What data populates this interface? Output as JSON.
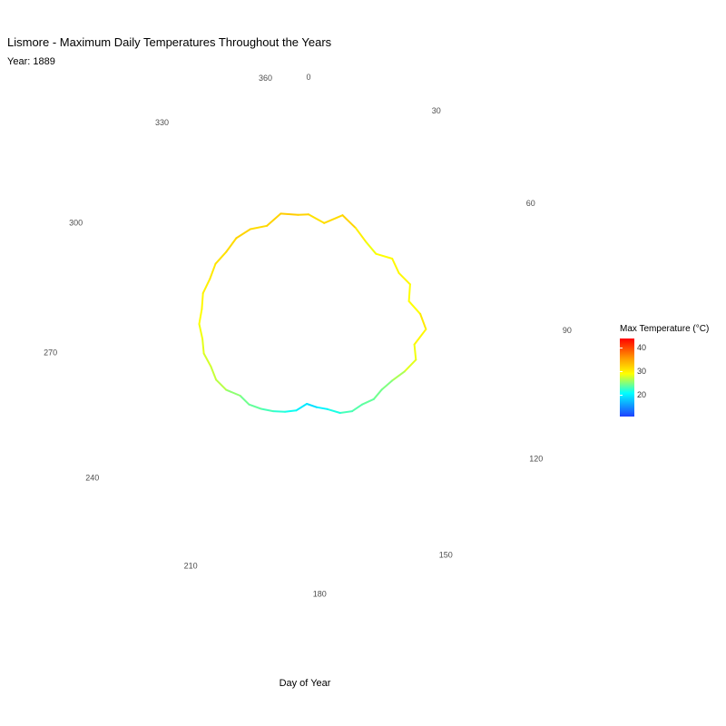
{
  "chart": {
    "title": "Lismore - Maximum Daily Temperatures Throughout the Years",
    "subtitle": "Year: 1889",
    "xlabel": "Day of Year"
  },
  "legend": {
    "title": "Max Temperature (°C)",
    "ticks": [
      "40",
      "30",
      "20"
    ],
    "colors": {
      "low": "#1e40ff",
      "mid_low": "#00ffff",
      "mid": "#ffff00",
      "mid_high": "#ff9900",
      "high": "#ff0000"
    }
  },
  "chart_data": {
    "type": "line",
    "coordinate_system": "polar",
    "title": "Lismore - Maximum Daily Temperatures Throughout the Years",
    "subtitle": "Year: 1889",
    "xlabel": "Day of Year",
    "ylabel": "",
    "theta_ticks": [
      0,
      30,
      60,
      90,
      120,
      150,
      180,
      210,
      240,
      270,
      300,
      330,
      360
    ],
    "x_range": [
      0,
      365
    ],
    "color_scale": {
      "name": "Max Temperature (°C)",
      "range": [
        11,
        43
      ],
      "ticks": [
        20,
        30,
        40
      ]
    },
    "grid": false,
    "legend_position": "right",
    "series": [
      {
        "x": [
          0,
          8,
          16,
          24,
          32,
          40,
          48,
          56,
          64,
          72,
          80,
          88,
          96,
          104,
          112,
          120,
          128,
          136,
          144,
          152,
          160,
          168,
          176,
          184,
          192,
          200,
          208,
          216,
          224,
          232,
          240,
          248,
          256,
          264,
          272,
          280,
          288,
          296,
          304,
          312,
          320,
          328,
          336,
          344,
          352,
          360
        ],
        "values": [
          32,
          30,
          33,
          31,
          29,
          28,
          30,
          29,
          30,
          28,
          30,
          31,
          28,
          29,
          27,
          25,
          24,
          24,
          23,
          23,
          22,
          20,
          19,
          18,
          20,
          21,
          22,
          23,
          24,
          24,
          26,
          27,
          27,
          28,
          28,
          29,
          29,
          30,
          30,
          31,
          31,
          32,
          32,
          31,
          33,
          32
        ]
      }
    ]
  }
}
